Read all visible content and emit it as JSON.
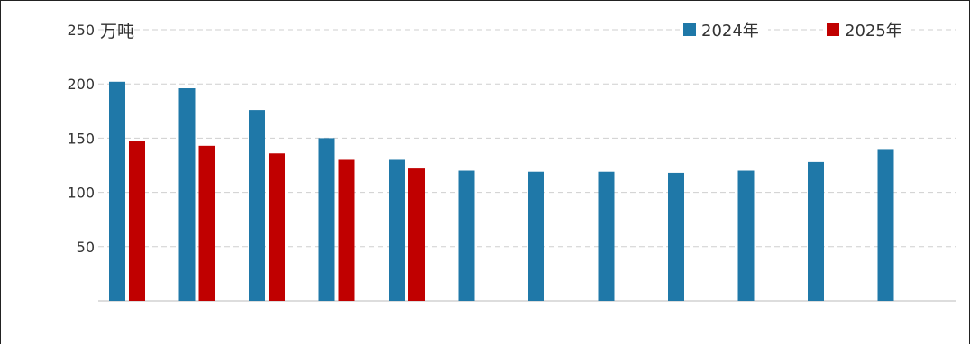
{
  "chart_data": {
    "type": "bar",
    "unit_label": "万吨",
    "ylim": [
      0,
      250
    ],
    "yticks": [
      50,
      100,
      150,
      200,
      250
    ],
    "grid": true,
    "legend_position": "top-right",
    "categories": [
      "",
      "",
      "",
      "",
      "",
      "",
      "",
      "",
      "",
      "",
      "",
      ""
    ],
    "series": [
      {
        "name": "2024年",
        "color": "#1f78a8",
        "values": [
          202,
          196,
          176,
          150,
          130,
          120,
          119,
          119,
          118,
          120,
          128,
          140
        ]
      },
      {
        "name": "2025年",
        "color": "#c00000",
        "values": [
          147,
          143,
          136,
          130,
          122,
          null,
          null,
          null,
          null,
          null,
          null,
          null
        ]
      }
    ]
  }
}
